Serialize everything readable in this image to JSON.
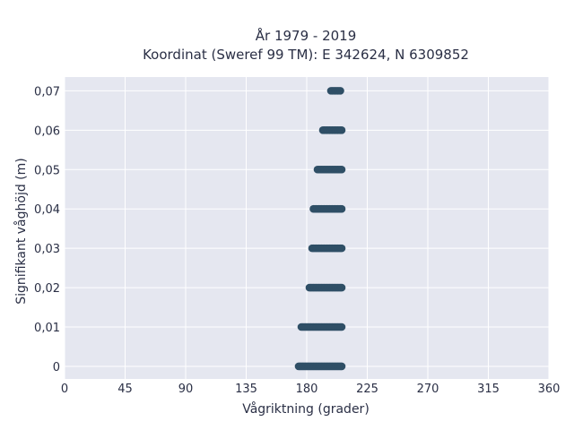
{
  "chart_data": {
    "type": "scatter",
    "title_line1": "År 1979 - 2019",
    "title_line2": "Koordinat (Sweref 99 TM): E 342624, N 6309852",
    "xlabel": "Vågriktning (grader)",
    "ylabel": "Signifikant våghöjd (m)",
    "xlim": [
      0,
      360
    ],
    "ylim": [
      -0.0032,
      0.0735
    ],
    "xticks": [
      0,
      45,
      90,
      135,
      180,
      225,
      270,
      315,
      360
    ],
    "xtick_labels": [
      "0",
      "45",
      "90",
      "135",
      "180",
      "225",
      "270",
      "315",
      "360"
    ],
    "yticks": [
      0,
      0.01,
      0.02,
      0.03,
      0.04,
      0.05,
      0.06,
      0.07
    ],
    "ytick_labels": [
      "0",
      "0,01",
      "0,02",
      "0,03",
      "0,04",
      "0,05",
      "0,06",
      "0,07"
    ],
    "grid": true,
    "background": "#e5e7f0",
    "marker_color": "#2f4f66",
    "clusters": [
      {
        "y": 0.0,
        "x_min": 174,
        "x_max": 206
      },
      {
        "y": 0.01,
        "x_min": 176,
        "x_max": 206
      },
      {
        "y": 0.02,
        "x_min": 182,
        "x_max": 206
      },
      {
        "y": 0.03,
        "x_min": 184,
        "x_max": 206
      },
      {
        "y": 0.04,
        "x_min": 185,
        "x_max": 206
      },
      {
        "y": 0.05,
        "x_min": 188,
        "x_max": 206
      },
      {
        "y": 0.06,
        "x_min": 192,
        "x_max": 206
      },
      {
        "y": 0.07,
        "x_min": 198,
        "x_max": 205
      }
    ]
  }
}
